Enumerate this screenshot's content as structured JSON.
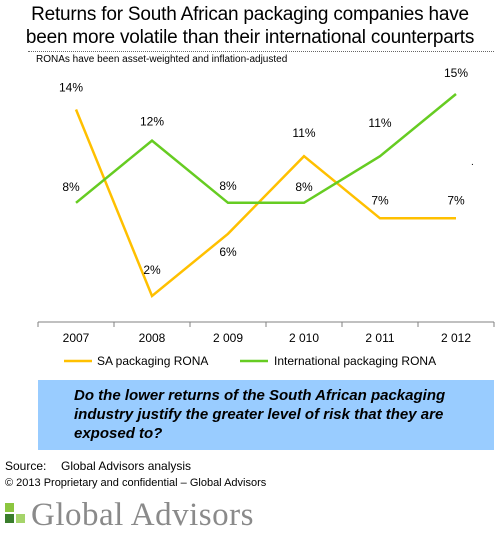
{
  "title_line1": "Returns for South African packaging companies have",
  "title_line2": "been more volatile than their international counterparts",
  "subtitle": "RONAs have been asset-weighted and inflation-adjusted",
  "chart_data": {
    "type": "line",
    "categories": [
      "2007",
      "2008",
      "2 009",
      "2 010",
      "2 011",
      "2 012"
    ],
    "series": [
      {
        "name": "SA packaging RONA",
        "values": [
          14,
          2,
          6,
          11,
          7,
          7
        ],
        "labels": [
          "14%",
          "2%",
          "6%",
          "11%",
          "7%",
          "7%"
        ],
        "color": "#ffc000"
      },
      {
        "name": "International packaging RONA",
        "values": [
          8,
          12,
          8,
          8,
          11,
          15
        ],
        "labels": [
          "8%",
          "12%",
          "8%",
          "8%",
          "11%",
          "15%"
        ],
        "color": "#66cc22"
      }
    ],
    "ylim": [
      0,
      16
    ],
    "grid": false,
    "legend": "bottom"
  },
  "question": "Do the lower returns of the South African packaging industry justify the greater level of risk that they are exposed to?",
  "source_label": "Source:",
  "source_value": "Global Advisors analysis",
  "copyright": "© 2013 Proprietary and confidential – Global Advisors",
  "logo_text": "Global Advisors",
  "stray_mark": "."
}
